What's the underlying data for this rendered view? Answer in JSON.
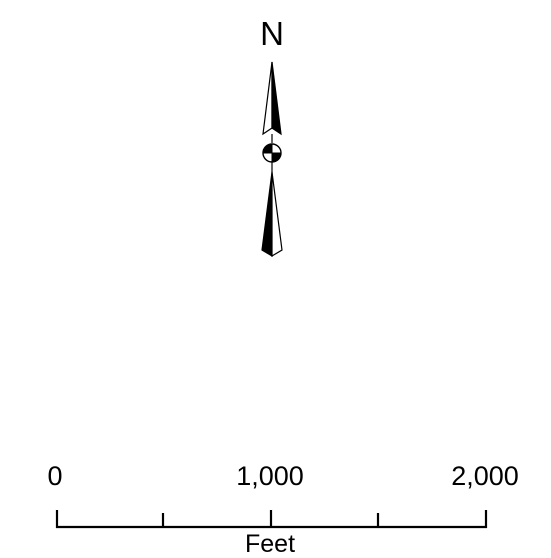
{
  "north_arrow": {
    "label": "N",
    "icon": "north-arrow-icon"
  },
  "scale_bar": {
    "tick_labels": [
      "0",
      "1,000",
      "2,000"
    ],
    "unit": "Feet",
    "colors": {
      "line": "#000000",
      "fill_dark": "#000000",
      "fill_light": "#ffffff"
    }
  }
}
